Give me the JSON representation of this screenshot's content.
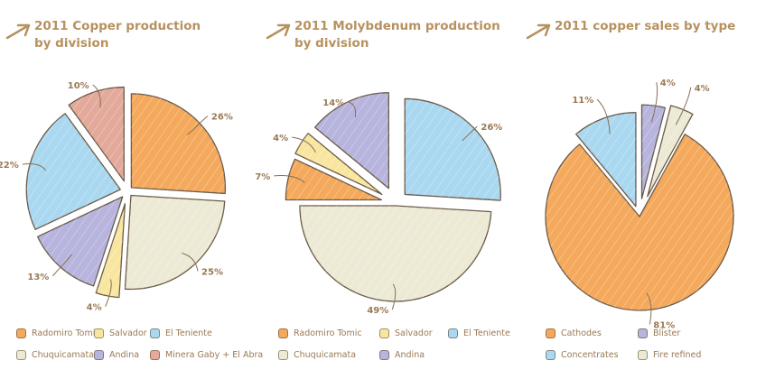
{
  "chart_data": [
    {
      "type": "pie",
      "title": "2011 Copper production\nby division",
      "slices": [
        {
          "name": "Radomiro Tomic",
          "value": 26,
          "label": "26%",
          "color": "#f4a95c"
        },
        {
          "name": "Chuquicamata",
          "value": 25,
          "label": "25%",
          "color": "#ecead4"
        },
        {
          "name": "Salvador",
          "value": 4,
          "label": "4%",
          "color": "#f8e6a0"
        },
        {
          "name": "Andina",
          "value": 13,
          "label": "13%",
          "color": "#b7b4dd"
        },
        {
          "name": "El Teniente",
          "value": 22,
          "label": "22%",
          "color": "#a9d8f0"
        },
        {
          "name": "Minera Gaby + El Abra",
          "value": 10,
          "label": "10%",
          "color": "#e3a99a"
        }
      ],
      "legend": [
        "Radomiro Tomic",
        "Salvador",
        "El Teniente",
        "Chuquicamata",
        "Andina",
        "Minera Gaby + El Abra"
      ],
      "legend_colors": [
        "#f4a95c",
        "#f8e6a0",
        "#a9d8f0",
        "#ecead4",
        "#b7b4dd",
        "#e3a99a"
      ]
    },
    {
      "type": "pie",
      "title": "2011 Molybdenum production\nby division",
      "slices": [
        {
          "name": "El Teniente",
          "value": 26,
          "label": "26%",
          "color": "#a9d8f0"
        },
        {
          "name": "Chuquicamata",
          "value": 49,
          "label": "49%",
          "color": "#ecead4"
        },
        {
          "name": "Radomiro Tomic",
          "value": 7,
          "label": "7%",
          "color": "#f4a95c"
        },
        {
          "name": "Salvador",
          "value": 4,
          "label": "4%",
          "color": "#f8e6a0"
        },
        {
          "name": "Andina",
          "value": 14,
          "label": "14%",
          "color": "#b7b4dd"
        }
      ],
      "legend": [
        "Radomiro Tomic",
        "Salvador",
        "El Teniente",
        "Chuquicamata",
        "Andina"
      ],
      "legend_colors": [
        "#f4a95c",
        "#f8e6a0",
        "#a9d8f0",
        "#ecead4",
        "#b7b4dd"
      ]
    },
    {
      "type": "pie",
      "title": "2011 copper sales by type",
      "slices": [
        {
          "name": "Blister",
          "value": 4,
          "label": "4%",
          "color": "#b7b4dd"
        },
        {
          "name": "Fire refined",
          "value": 4,
          "label": "4%",
          "color": "#ecead4"
        },
        {
          "name": "Cathodes",
          "value": 81,
          "label": "81%",
          "color": "#f4a95c"
        },
        {
          "name": "Concentrates",
          "value": 11,
          "label": "11%",
          "color": "#a9d8f0"
        }
      ],
      "legend": [
        "Cathodes",
        "Blister",
        "Concentrates",
        "Fire refined"
      ],
      "legend_colors": [
        "#f4a95c",
        "#b7b4dd",
        "#a9d8f0",
        "#ecead4"
      ]
    }
  ]
}
